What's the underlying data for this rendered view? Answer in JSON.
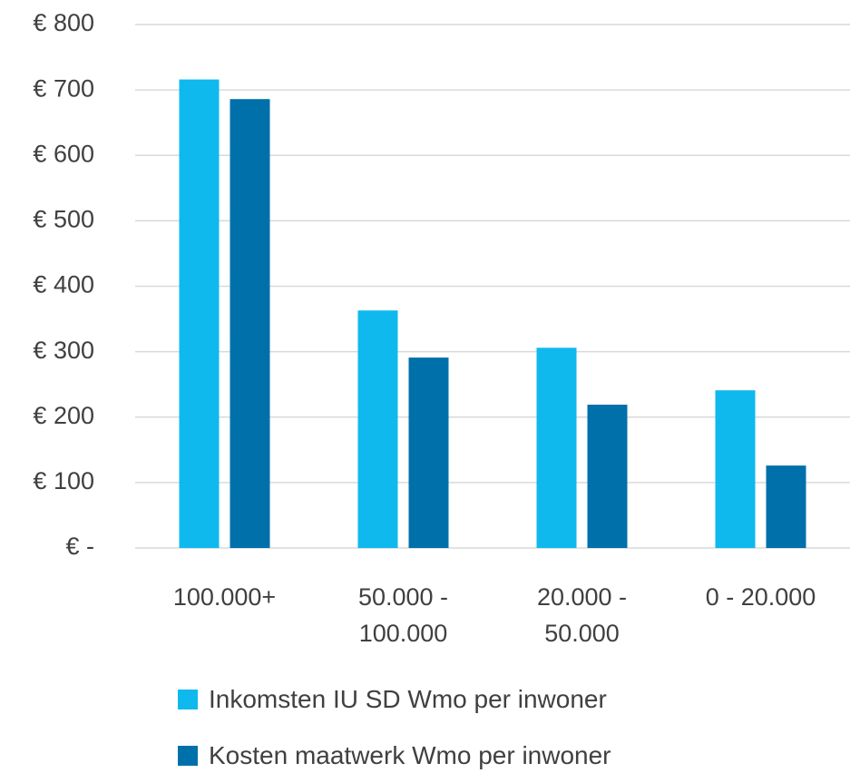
{
  "chart_data": {
    "type": "bar",
    "categories": [
      "100.000+",
      "50.000 - 100.000",
      "20.000 - 50.000",
      "0 - 20.000"
    ],
    "series": [
      {
        "name": "Inkomsten IU SD Wmo per inwoner",
        "color": "#0fb9ee",
        "values": [
          716,
          363,
          306,
          241
        ]
      },
      {
        "name": "Kosten maatwerk Wmo per inwoner",
        "color": "#0070aa",
        "values": [
          686,
          291,
          219,
          126
        ]
      }
    ],
    "ylim": [
      0,
      800
    ],
    "yticks": [
      {
        "value": 0,
        "label": "€ -"
      },
      {
        "value": 100,
        "label": "€ 100"
      },
      {
        "value": 200,
        "label": "€ 200"
      },
      {
        "value": 300,
        "label": "€ 300"
      },
      {
        "value": 400,
        "label": "€ 400"
      },
      {
        "value": 500,
        "label": "€ 500"
      },
      {
        "value": 600,
        "label": "€ 600"
      },
      {
        "value": 700,
        "label": "€ 700"
      },
      {
        "value": 800,
        "label": "€ 800"
      }
    ],
    "grid": true,
    "legend": "bottom"
  }
}
